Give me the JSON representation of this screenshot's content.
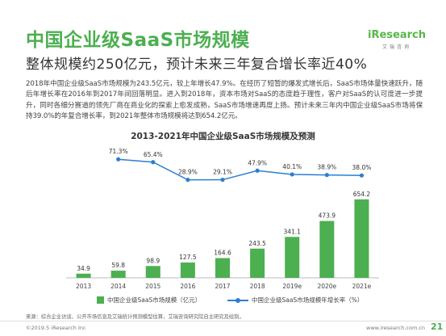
{
  "title": "中国企业级SaaS市场规模",
  "subtitle": "整体规模约250亿元，预计未来三年复合增长率近40%",
  "logo": {
    "main": "iResearch",
    "sub": "艾瑞咨询"
  },
  "paragraph": "2018年中国企业级SaaS市场规模为243.5亿元，较上年增长47.9%。在经历了短暂的爆发式增长后，SaaS市场体量快速跃升，随后年增长率在2016年到2017年间回落明显。进入到2018年，资本市场对SaaS的态度趋于理性，客户对SaaS的认可度进一步提升，同时各细分赛道的领先厂商在商业化的探索上愈发成熟，SaaS市场增速再度上扬。预计未来三年内中国企业级SaaS市场将保持39.0%的年复合增长率，到2021年整体市场规模将达到654.2亿元。",
  "chart_data": {
    "type": "bar",
    "title": "2013-2021年中国企业级SaaS市场规模及预测",
    "categories": [
      "2013",
      "2014",
      "2015",
      "2016",
      "2017",
      "2018",
      "2019e",
      "2020e",
      "2021e"
    ],
    "series": [
      {
        "name": "中国企业级SaaS市场规模（亿元）",
        "type": "bar",
        "values": [
          34.9,
          59.8,
          98.9,
          127.5,
          164.6,
          243.5,
          341.1,
          473.9,
          654.2
        ],
        "labels": [
          "34.9",
          "59.8",
          "98.9",
          "127.5",
          "164.6",
          "243.5",
          "341.1",
          "473.9",
          "654.2"
        ]
      },
      {
        "name": "中国企业级SaaS市场规模年增长率（%）",
        "type": "line",
        "values": [
          null,
          71.3,
          65.4,
          28.9,
          29.1,
          47.9,
          40.1,
          38.9,
          38.0
        ],
        "labels": [
          "",
          "71.3%",
          "65.4%",
          "28.9%",
          "29.1%",
          "47.9%",
          "40.1%",
          "38.9%",
          "38.0%"
        ]
      }
    ],
    "colors": {
      "bar": "#4caf50",
      "line": "#2b7fd2"
    },
    "ylim_bar": [
      0,
      700
    ],
    "ylim_line": [
      0,
      100
    ],
    "legend_position": "bottom",
    "grid": false
  },
  "source": "来源：综合企业访谈、公开市场信息及艾瑞统计预测模型估算，艾瑞咨询研究院自主研究及绘制。",
  "footer": {
    "copyright": "©2019.5 iResearch Inc",
    "website": "www.iresearch.com.cn",
    "page": "21"
  }
}
